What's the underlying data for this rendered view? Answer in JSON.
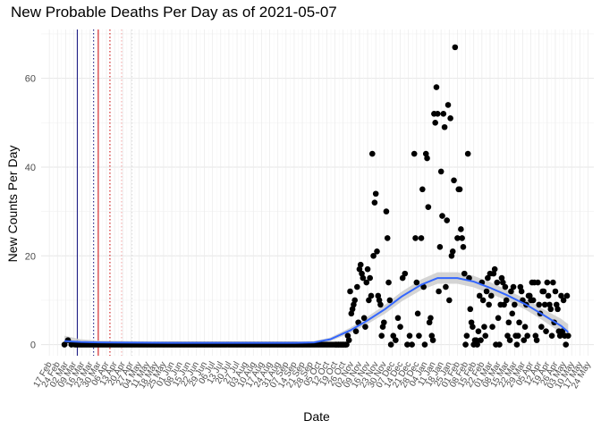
{
  "chart_data": {
    "type": "scatter",
    "title": "New Probable Deaths Per Day as of 2021-05-07",
    "xlabel": "Date",
    "ylabel": "New Counts Per Day",
    "ylim": [
      -2.5,
      71
    ],
    "xlim": [
      "2020-02-10",
      "2021-05-29"
    ],
    "y_ticks": [
      0,
      20,
      40,
      60
    ],
    "grid": true,
    "x_ticks": [
      "17 Feb",
      "24 Feb",
      "02 Mar",
      "09 Mar",
      "16 Mar",
      "23 Mar",
      "30 Mar",
      "06 Apr",
      "13 Apr",
      "20 Apr",
      "27 Apr",
      "04 May",
      "11 May",
      "18 May",
      "25 May",
      "01 Jun",
      "08 Jun",
      "15 Jun",
      "22 Jun",
      "29 Jun",
      "06 Jul",
      "13 Jul",
      "20 Jul",
      "27 Jul",
      "03 Aug",
      "10 Aug",
      "17 Aug",
      "24 Aug",
      "31 Aug",
      "07 Sep",
      "14 Sep",
      "21 Sep",
      "28 Sep",
      "05 Oct",
      "12 Oct",
      "19 Oct",
      "26 Oct",
      "02 Nov",
      "09 Nov",
      "16 Nov",
      "23 Nov",
      "30 Nov",
      "07 Dec",
      "14 Dec",
      "21 Dec",
      "28 Dec",
      "04 Jan",
      "11 Jan",
      "18 Jan",
      "25 Jan",
      "01 Feb",
      "08 Feb",
      "15 Feb",
      "22 Feb",
      "01 Mar",
      "08 Mar",
      "15 Mar",
      "22 Mar",
      "29 Mar",
      "05 Apr",
      "12 Apr",
      "19 Apr",
      "26 Apr",
      "03 May",
      "10 May",
      "17 May",
      "24 May"
    ],
    "vlines": [
      {
        "date": "2020-03-12",
        "color": "#0b0b7a",
        "style": "solid"
      },
      {
        "date": "2020-03-26",
        "color": "#0b0b7a",
        "style": "dotted"
      },
      {
        "date": "2020-03-30",
        "color": "#cc0000",
        "style": "solid"
      },
      {
        "date": "2020-04-09",
        "color": "#cc0000",
        "style": "dotted"
      },
      {
        "date": "2020-04-19",
        "color": "#f4a0a0",
        "style": "dotted"
      },
      {
        "date": "2020-04-28",
        "color": "#d8d8d8",
        "style": "dotted"
      }
    ],
    "series": [
      {
        "type": "points",
        "color": "#000000",
        "zero_run": {
          "start": "2020-03-10",
          "end": "2020-10-29",
          "value": 0
        },
        "points": [
          [
            "2020-03-01",
            0
          ],
          [
            "2020-03-04",
            1
          ],
          [
            "2020-03-07",
            0
          ],
          [
            "2020-10-20",
            0
          ],
          [
            "2020-10-22",
            0
          ],
          [
            "2020-10-24",
            0
          ],
          [
            "2020-10-26",
            0
          ],
          [
            "2020-10-28",
            0
          ],
          [
            "2020-10-30",
            2
          ],
          [
            "2020-10-31",
            1
          ],
          [
            "2020-11-01",
            12
          ],
          [
            "2020-11-02",
            7
          ],
          [
            "2020-11-03",
            8
          ],
          [
            "2020-11-04",
            9
          ],
          [
            "2020-11-05",
            10
          ],
          [
            "2020-11-06",
            3
          ],
          [
            "2020-11-07",
            13
          ],
          [
            "2020-11-08",
            5
          ],
          [
            "2020-11-09",
            17
          ],
          [
            "2020-11-10",
            18
          ],
          [
            "2020-11-11",
            16
          ],
          [
            "2020-11-12",
            15
          ],
          [
            "2020-11-13",
            6
          ],
          [
            "2020-11-14",
            4
          ],
          [
            "2020-11-15",
            14
          ],
          [
            "2020-11-16",
            17
          ],
          [
            "2020-11-17",
            10
          ],
          [
            "2020-11-18",
            15
          ],
          [
            "2020-11-19",
            11
          ],
          [
            "2020-11-20",
            43
          ],
          [
            "2020-11-21",
            20
          ],
          [
            "2020-11-22",
            32
          ],
          [
            "2020-11-23",
            34
          ],
          [
            "2020-11-24",
            21
          ],
          [
            "2020-11-25",
            11
          ],
          [
            "2020-11-26",
            10
          ],
          [
            "2020-11-27",
            9
          ],
          [
            "2020-11-28",
            2
          ],
          [
            "2020-11-29",
            4
          ],
          [
            "2020-11-30",
            5
          ],
          [
            "2020-12-02",
            30
          ],
          [
            "2020-12-03",
            24
          ],
          [
            "2020-12-04",
            14
          ],
          [
            "2020-12-05",
            10
          ],
          [
            "2020-12-06",
            0
          ],
          [
            "2020-12-08",
            2
          ],
          [
            "2020-12-10",
            1
          ],
          [
            "2020-12-12",
            6
          ],
          [
            "2020-12-14",
            4
          ],
          [
            "2020-12-16",
            15
          ],
          [
            "2020-12-18",
            16
          ],
          [
            "2020-12-20",
            0
          ],
          [
            "2020-12-22",
            2
          ],
          [
            "2020-12-24",
            0
          ],
          [
            "2020-12-26",
            43
          ],
          [
            "2020-12-27",
            24
          ],
          [
            "2020-12-28",
            14
          ],
          [
            "2020-12-29",
            7
          ],
          [
            "2020-12-30",
            2
          ],
          [
            "2021-01-01",
            24
          ],
          [
            "2021-01-02",
            35
          ],
          [
            "2021-01-03",
            13
          ],
          [
            "2021-01-04",
            0
          ],
          [
            "2021-01-05",
            43
          ],
          [
            "2021-01-06",
            42
          ],
          [
            "2021-01-07",
            31
          ],
          [
            "2021-01-08",
            5
          ],
          [
            "2021-01-09",
            6
          ],
          [
            "2021-01-10",
            2
          ],
          [
            "2021-01-11",
            1
          ],
          [
            "2021-01-12",
            52
          ],
          [
            "2021-01-13",
            50
          ],
          [
            "2021-01-14",
            58
          ],
          [
            "2021-01-15",
            52
          ],
          [
            "2021-01-16",
            12
          ],
          [
            "2021-01-17",
            22
          ],
          [
            "2021-01-18",
            39
          ],
          [
            "2021-01-19",
            29
          ],
          [
            "2021-01-20",
            52
          ],
          [
            "2021-01-21",
            49
          ],
          [
            "2021-01-22",
            13
          ],
          [
            "2021-01-23",
            28
          ],
          [
            "2021-01-24",
            54
          ],
          [
            "2021-01-25",
            10
          ],
          [
            "2021-01-26",
            51
          ],
          [
            "2021-01-27",
            20
          ],
          [
            "2021-01-28",
            21
          ],
          [
            "2021-01-29",
            37
          ],
          [
            "2021-01-30",
            67
          ],
          [
            "2021-02-01",
            24
          ],
          [
            "2021-02-02",
            35
          ],
          [
            "2021-02-03",
            35
          ],
          [
            "2021-02-04",
            26
          ],
          [
            "2021-02-05",
            24
          ],
          [
            "2021-02-06",
            22
          ],
          [
            "2021-02-07",
            16
          ],
          [
            "2021-02-08",
            0
          ],
          [
            "2021-02-09",
            2
          ],
          [
            "2021-02-10",
            43
          ],
          [
            "2021-02-11",
            15
          ],
          [
            "2021-02-12",
            8
          ],
          [
            "2021-02-13",
            5
          ],
          [
            "2021-02-14",
            4
          ],
          [
            "2021-02-15",
            0
          ],
          [
            "2021-02-16",
            1
          ],
          [
            "2021-02-17",
            1
          ],
          [
            "2021-02-18",
            0
          ],
          [
            "2021-02-19",
            3
          ],
          [
            "2021-02-20",
            11
          ],
          [
            "2021-02-21",
            1
          ],
          [
            "2021-02-22",
            14
          ],
          [
            "2021-02-23",
            10
          ],
          [
            "2021-02-24",
            4
          ],
          [
            "2021-02-25",
            2
          ],
          [
            "2021-02-26",
            12
          ],
          [
            "2021-02-27",
            15
          ],
          [
            "2021-02-28",
            9
          ],
          [
            "2021-03-01",
            16
          ],
          [
            "2021-03-02",
            11
          ],
          [
            "2021-03-03",
            4
          ],
          [
            "2021-03-04",
            16
          ],
          [
            "2021-03-05",
            17
          ],
          [
            "2021-03-06",
            0
          ],
          [
            "2021-03-07",
            14
          ],
          [
            "2021-03-08",
            6
          ],
          [
            "2021-03-09",
            0
          ],
          [
            "2021-03-10",
            9
          ],
          [
            "2021-03-11",
            15
          ],
          [
            "2021-03-12",
            14
          ],
          [
            "2021-03-13",
            9
          ],
          [
            "2021-03-14",
            13
          ],
          [
            "2021-03-15",
            10
          ],
          [
            "2021-03-16",
            2
          ],
          [
            "2021-03-17",
            5
          ],
          [
            "2021-03-18",
            1
          ],
          [
            "2021-03-19",
            12
          ],
          [
            "2021-03-20",
            7
          ],
          [
            "2021-03-21",
            13
          ],
          [
            "2021-03-22",
            9
          ],
          [
            "2021-03-23",
            2
          ],
          [
            "2021-03-24",
            0
          ],
          [
            "2021-03-25",
            2
          ],
          [
            "2021-03-26",
            5
          ],
          [
            "2021-03-27",
            13
          ],
          [
            "2021-03-28",
            12
          ],
          [
            "2021-03-29",
            10
          ],
          [
            "2021-03-30",
            1
          ],
          [
            "2021-03-31",
            4
          ],
          [
            "2021-04-01",
            9
          ],
          [
            "2021-04-02",
            2
          ],
          [
            "2021-04-03",
            11
          ],
          [
            "2021-04-04",
            11
          ],
          [
            "2021-04-05",
            10
          ],
          [
            "2021-04-06",
            14
          ],
          [
            "2021-04-07",
            10
          ],
          [
            "2021-04-08",
            14
          ],
          [
            "2021-04-09",
            2
          ],
          [
            "2021-04-10",
            1
          ],
          [
            "2021-04-11",
            14
          ],
          [
            "2021-04-12",
            9
          ],
          [
            "2021-04-13",
            7
          ],
          [
            "2021-04-14",
            4
          ],
          [
            "2021-04-15",
            12
          ],
          [
            "2021-04-16",
            12
          ],
          [
            "2021-04-17",
            9
          ],
          [
            "2021-04-18",
            3
          ],
          [
            "2021-04-19",
            14
          ],
          [
            "2021-04-20",
            11
          ],
          [
            "2021-04-21",
            9
          ],
          [
            "2021-04-22",
            8
          ],
          [
            "2021-04-23",
            2
          ],
          [
            "2021-04-24",
            14
          ],
          [
            "2021-04-25",
            5
          ],
          [
            "2021-04-26",
            12
          ],
          [
            "2021-04-27",
            9
          ],
          [
            "2021-04-28",
            8
          ],
          [
            "2021-04-29",
            3
          ],
          [
            "2021-04-30",
            2
          ],
          [
            "2021-05-01",
            11
          ],
          [
            "2021-05-02",
            3
          ],
          [
            "2021-05-03",
            10
          ],
          [
            "2021-05-04",
            2
          ],
          [
            "2021-05-05",
            0
          ],
          [
            "2021-05-06",
            11
          ],
          [
            "2021-05-07",
            2
          ]
        ]
      },
      {
        "type": "smooth",
        "color": "#3366ff",
        "band_color": "#cccccc",
        "line": [
          [
            "2020-03-01",
            0.8
          ],
          [
            "2020-03-15",
            0.6
          ],
          [
            "2020-04-01",
            0.5
          ],
          [
            "2020-06-01",
            0.4
          ],
          [
            "2020-08-01",
            0.4
          ],
          [
            "2020-09-15",
            0.4
          ],
          [
            "2020-10-01",
            0.5
          ],
          [
            "2020-10-15",
            1.2
          ],
          [
            "2020-11-01",
            3.2
          ],
          [
            "2020-11-15",
            5.3
          ],
          [
            "2020-12-01",
            8.0
          ],
          [
            "2020-12-15",
            10.8
          ],
          [
            "2021-01-01",
            13.5
          ],
          [
            "2021-01-15",
            15.0
          ],
          [
            "2021-02-01",
            15.0
          ],
          [
            "2021-02-15",
            14.2
          ],
          [
            "2021-03-01",
            12.8
          ],
          [
            "2021-03-15",
            11.2
          ],
          [
            "2021-04-01",
            9.0
          ],
          [
            "2021-04-15",
            6.8
          ],
          [
            "2021-05-01",
            4.2
          ],
          [
            "2021-05-07",
            2.8
          ]
        ],
        "band_half_width": [
          1.2,
          0.6,
          0.4,
          0.3,
          0.3,
          0.3,
          0.3,
          0.4,
          0.6,
          0.8,
          1.0,
          1.1,
          1.2,
          1.3,
          1.3,
          1.3,
          1.3,
          1.2,
          1.2,
          1.3,
          1.6,
          1.8
        ]
      }
    ]
  }
}
